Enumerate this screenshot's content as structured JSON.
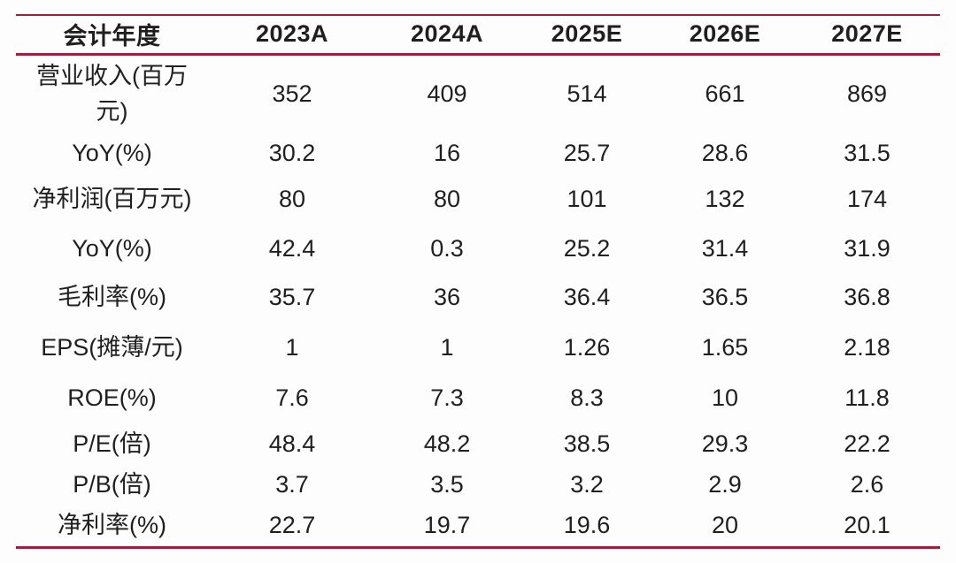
{
  "meta": {
    "description": "Financial forecast summary table (research report style)",
    "accent_line_color": "#A11E3F",
    "text_color": "#1F1F1F",
    "background_color": "#FDFDFD"
  },
  "table": {
    "columns": [
      "会计年度",
      "2023A",
      "2024A",
      "2025E",
      "2026E",
      "2027E"
    ],
    "rows": [
      {
        "label": "营业收入(百万元)",
        "values": [
          "352",
          "409",
          "514",
          "661",
          "869"
        ]
      },
      {
        "label": "YoY(%)",
        "values": [
          "30.2",
          "16",
          "25.7",
          "28.6",
          "31.5"
        ]
      },
      {
        "label": "净利润(百万元)",
        "values": [
          "80",
          "80",
          "101",
          "132",
          "174"
        ]
      },
      {
        "label": "YoY(%)",
        "values": [
          "42.4",
          "0.3",
          "25.2",
          "31.4",
          "31.9"
        ]
      },
      {
        "label": "毛利率(%)",
        "values": [
          "35.7",
          "36",
          "36.4",
          "36.5",
          "36.8"
        ]
      },
      {
        "label": "EPS(摊薄/元)",
        "values": [
          "1",
          "1",
          "1.26",
          "1.65",
          "2.18"
        ]
      },
      {
        "label": "ROE(%)",
        "values": [
          "7.6",
          "7.3",
          "8.3",
          "10",
          "11.8"
        ]
      },
      {
        "label": "P/E(倍)",
        "values": [
          "48.4",
          "48.2",
          "38.5",
          "29.3",
          "22.2"
        ]
      },
      {
        "label": "P/B(倍)",
        "values": [
          "3.7",
          "3.5",
          "3.2",
          "2.9",
          "2.6"
        ]
      },
      {
        "label": "净利率(%)",
        "values": [
          "22.7",
          "19.7",
          "19.6",
          "20",
          "20.1"
        ]
      }
    ]
  }
}
